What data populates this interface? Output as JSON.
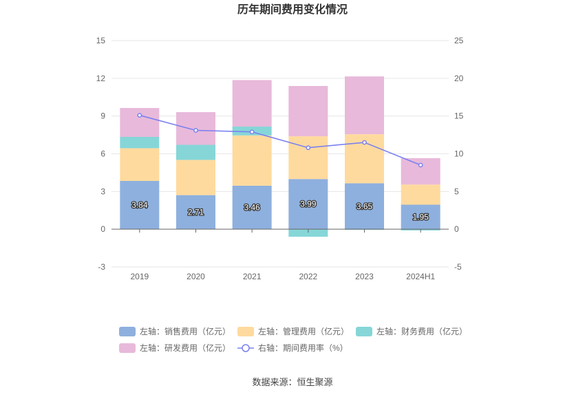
{
  "source_label": "数据来源：恒生聚源",
  "chart_data": {
    "type": "bar",
    "title": "历年期间费用变化情况",
    "categories": [
      "2019",
      "2020",
      "2021",
      "2022",
      "2023",
      "2024H1"
    ],
    "left_axis": {
      "min": -3,
      "max": 15,
      "ticks": [
        -3,
        0,
        3,
        6,
        9,
        12,
        15
      ]
    },
    "right_axis": {
      "min": -5,
      "max": 25,
      "ticks": [
        -5,
        0,
        5,
        10,
        15,
        20,
        25
      ]
    },
    "grid": true,
    "legend_position": "bottom",
    "series": [
      {
        "name": "左轴：销售费用（亿元）",
        "type": "bar",
        "axis": "left",
        "color": "#8EB0DE",
        "values": [
          3.84,
          2.71,
          3.46,
          3.99,
          3.65,
          1.95
        ],
        "labels": [
          "3.84",
          "2.71",
          "3.46",
          "3.99",
          "3.65",
          "1.95"
        ]
      },
      {
        "name": "左轴：管理费用（亿元）",
        "type": "bar",
        "axis": "left",
        "color": "#FFDA9E",
        "values": [
          2.6,
          2.8,
          4.0,
          3.4,
          3.9,
          1.6
        ]
      },
      {
        "name": "左轴：财务费用（亿元）",
        "type": "bar",
        "axis": "left",
        "color": "#86D6D8",
        "values": [
          0.9,
          1.2,
          0.7,
          -0.6,
          -0.05,
          -0.1
        ]
      },
      {
        "name": "左轴：研发费用（亿元）",
        "type": "bar",
        "axis": "left",
        "color": "#E8B9DA",
        "values": [
          2.3,
          2.6,
          3.7,
          4.0,
          4.6,
          2.1
        ]
      },
      {
        "name": "右轴：期间费用率（%）",
        "type": "line",
        "axis": "right",
        "color": "#7A80F0",
        "values": [
          15.1,
          13.1,
          12.9,
          10.8,
          11.5,
          8.5
        ]
      }
    ]
  }
}
